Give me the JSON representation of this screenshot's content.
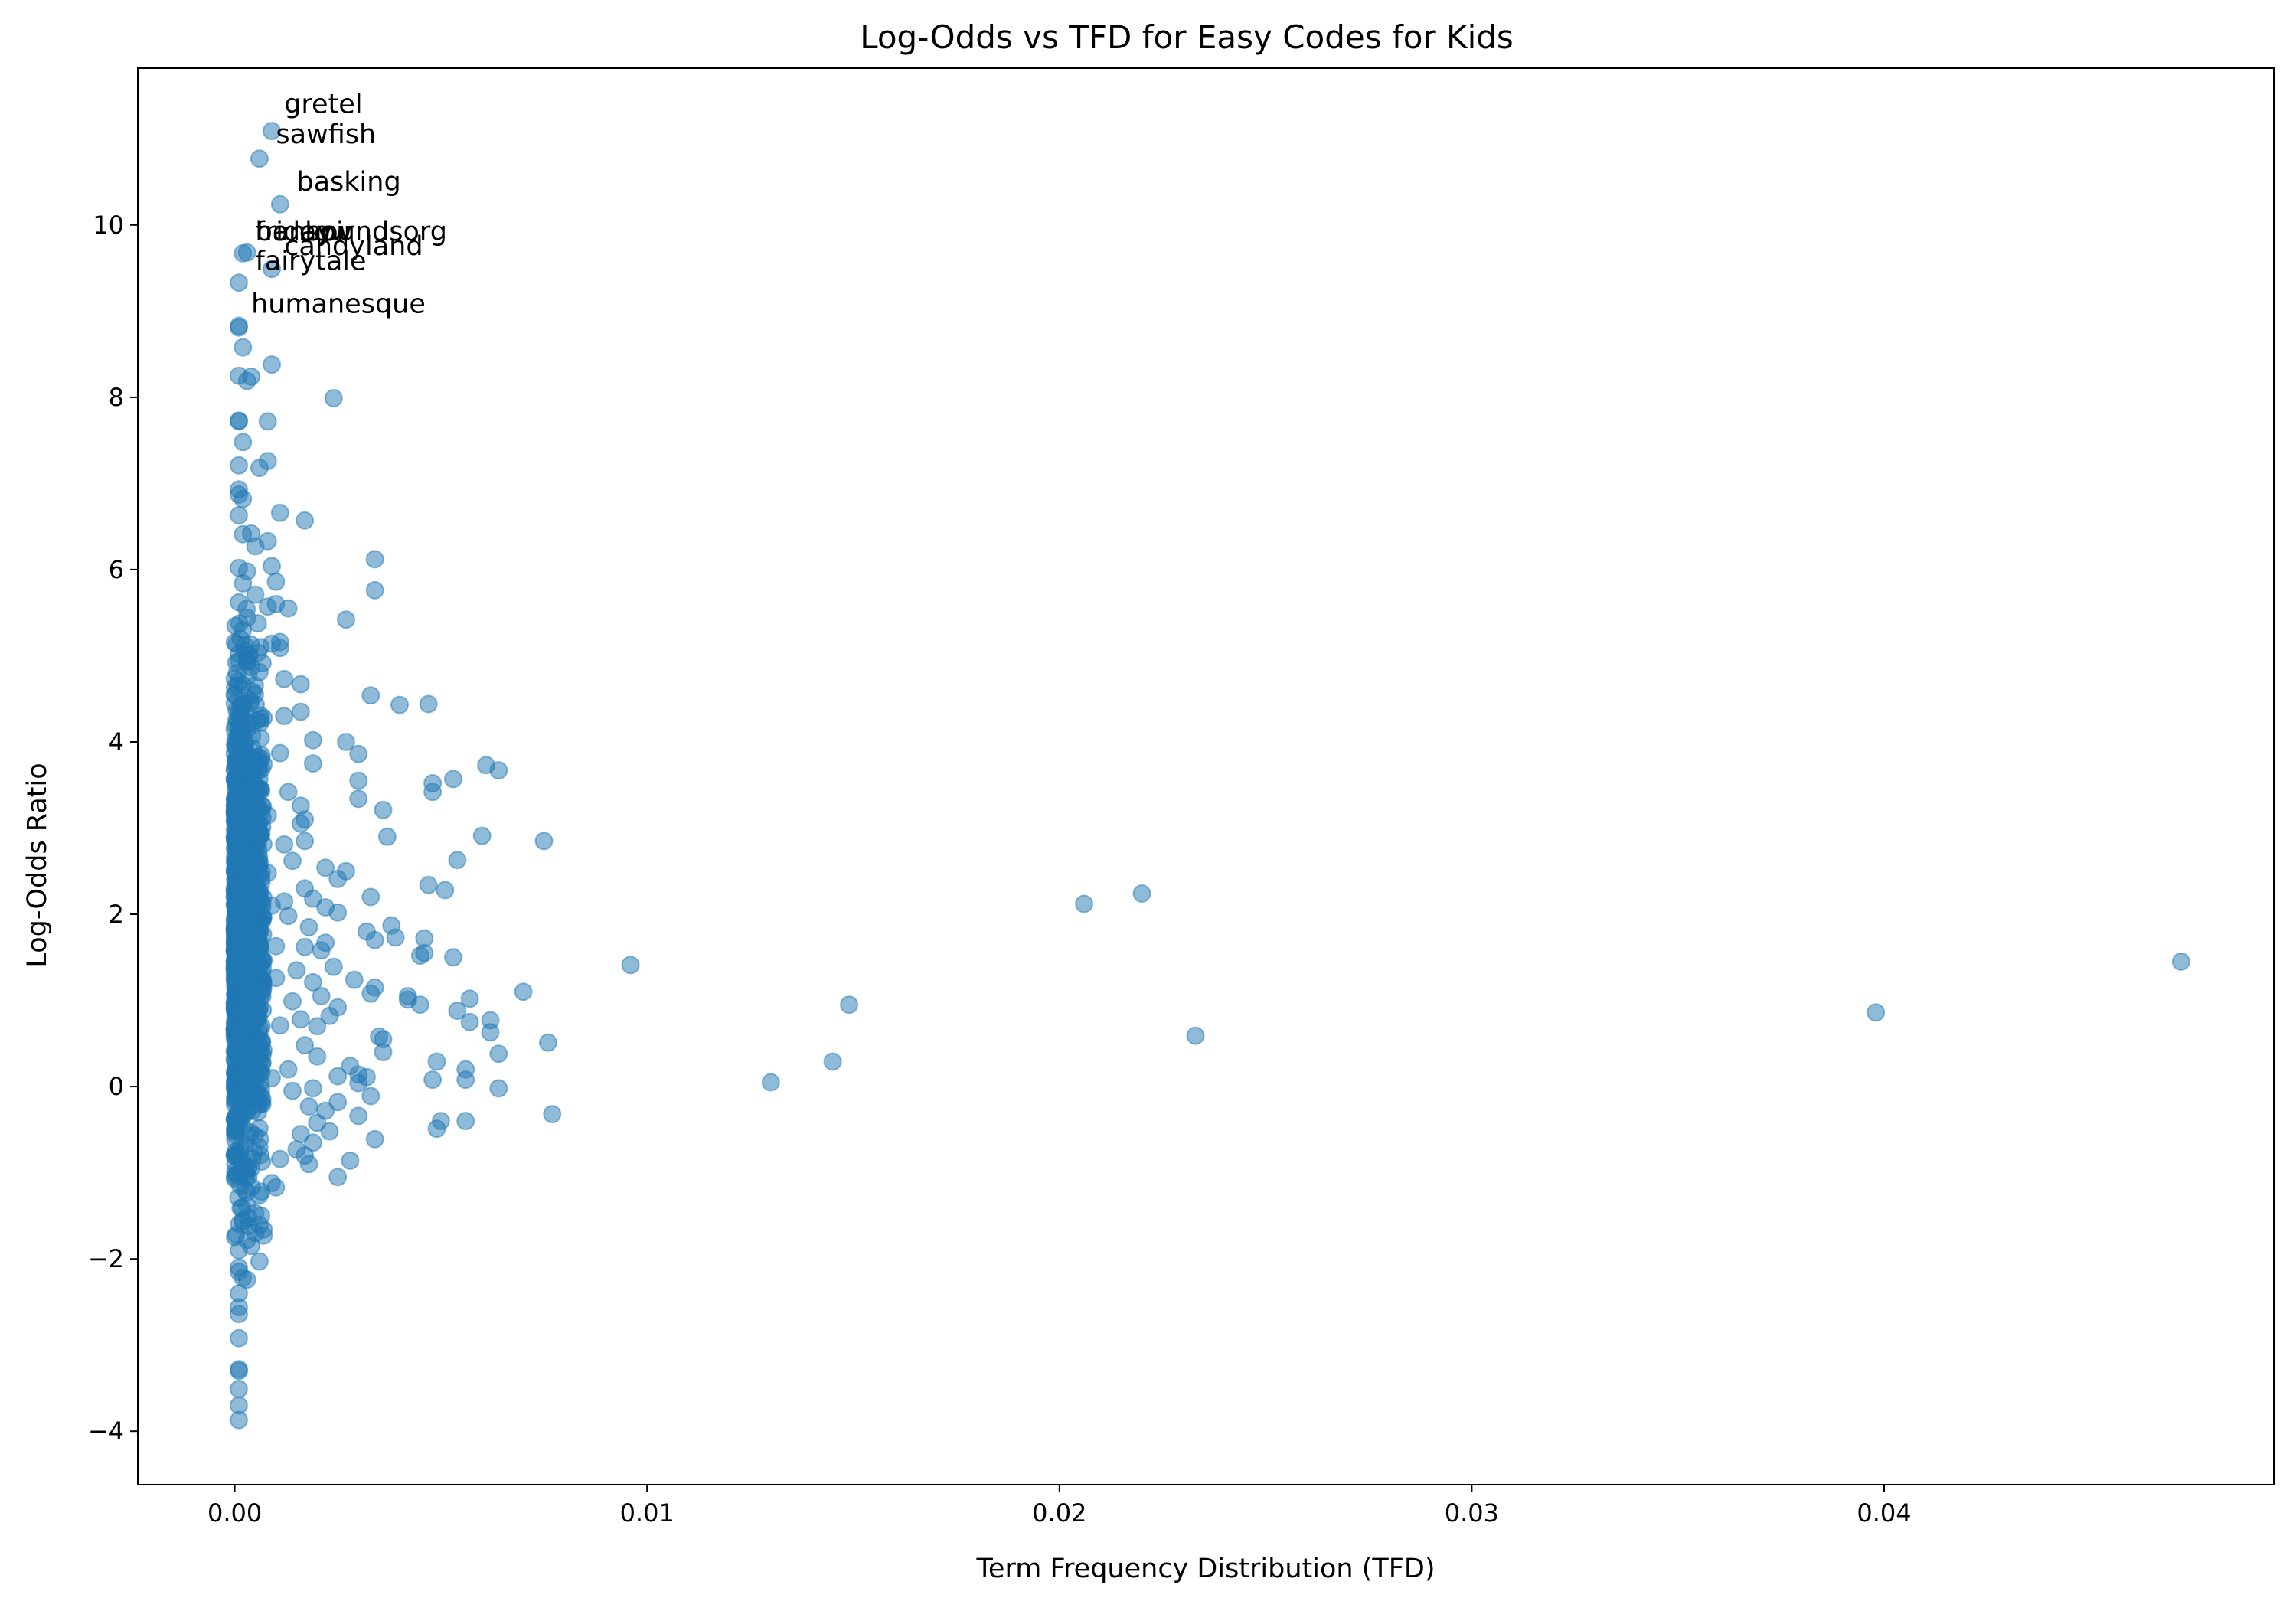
{
  "chart_data": {
    "type": "scatter",
    "title": "Log-Odds vs TFD for Easy Codes for Kids",
    "xlabel": "Term Frequency Distribution (TFD)",
    "ylabel": "Log-Odds Ratio",
    "xlim": [
      -0.00235,
      0.04945
    ],
    "ylim": [
      -4.62,
      11.82
    ],
    "x_ticks": [
      0.0,
      0.01,
      0.02,
      0.03,
      0.04
    ],
    "x_tick_labels": [
      "0.00",
      "0.01",
      "0.02",
      "0.03",
      "0.04"
    ],
    "y_ticks": [
      -4,
      -2,
      0,
      2,
      4,
      6,
      8,
      10
    ],
    "y_tick_labels": [
      "−4",
      "−2",
      "0",
      "2",
      "4",
      "6",
      "8",
      "10"
    ],
    "grid": false,
    "legend": "none",
    "point_color": "#1f77b4",
    "point_alpha": 0.5,
    "points": [
      [
        0.0009,
        11.09
      ],
      [
        0.0006,
        10.77
      ],
      [
        0.0011,
        10.24
      ],
      [
        0.0002,
        9.67
      ],
      [
        0.0003,
        9.68
      ],
      [
        0.0009,
        9.49
      ],
      [
        0.0001,
        9.33
      ],
      [
        0.0001,
        8.81
      ],
      [
        0.0001,
        8.83
      ],
      [
        0.0002,
        8.58
      ],
      [
        0.0009,
        8.38
      ],
      [
        0.0001,
        8.25
      ],
      [
        0.0004,
        8.24
      ],
      [
        0.0003,
        8.19
      ],
      [
        0.0024,
        7.99
      ],
      [
        0.0001,
        7.73
      ],
      [
        0.0001,
        7.72
      ],
      [
        0.0008,
        7.72
      ],
      [
        0.0002,
        7.48
      ],
      [
        0.0008,
        7.26
      ],
      [
        0.0006,
        7.18
      ],
      [
        0.0001,
        7.21
      ],
      [
        0.0001,
        6.93
      ],
      [
        0.0001,
        6.87
      ],
      [
        0.0002,
        6.82
      ],
      [
        0.0011,
        6.66
      ],
      [
        0.0001,
        6.63
      ],
      [
        0.0017,
        6.57
      ],
      [
        0.0002,
        6.41
      ],
      [
        0.0004,
        6.42
      ],
      [
        0.0008,
        6.33
      ],
      [
        0.0005,
        6.27
      ],
      [
        0.0034,
        6.12
      ],
      [
        0.0001,
        6.02
      ],
      [
        0.0009,
        6.04
      ],
      [
        0.0003,
        5.98
      ],
      [
        0.0002,
        5.84
      ],
      [
        0.001,
        5.86
      ],
      [
        0.0034,
        5.76
      ],
      [
        0.0005,
        5.71
      ],
      [
        0.0001,
        5.62
      ],
      [
        0.001,
        5.6
      ],
      [
        0.0013,
        5.55
      ],
      [
        0.0008,
        5.57
      ],
      [
        0.0003,
        5.44
      ],
      [
        0.0027,
        5.42
      ],
      [
        0.0002,
        5.3
      ],
      [
        0.0011,
        5.16
      ],
      [
        0.0009,
        5.14
      ],
      [
        0.0011,
        5.09
      ],
      [
        0.0001,
        5.02
      ],
      [
        0.0003,
        4.93
      ],
      [
        0.0004,
        4.87
      ],
      [
        0.0006,
        4.81
      ],
      [
        0.0012,
        4.73
      ],
      [
        0.0016,
        4.67
      ],
      [
        0.0033,
        4.54
      ],
      [
        0.004,
        4.43
      ],
      [
        0.0047,
        4.44
      ],
      [
        0.0016,
        4.35
      ],
      [
        0.0012,
        4.3
      ],
      [
        0.0007,
        4.28
      ],
      [
        0.0003,
        4.2
      ],
      [
        0.0002,
        4.07
      ],
      [
        0.0019,
        4.02
      ],
      [
        0.0027,
        4.0
      ],
      [
        0.0011,
        3.87
      ],
      [
        0.003,
        3.86
      ],
      [
        0.0005,
        3.78
      ],
      [
        0.0007,
        3.74
      ],
      [
        0.0019,
        3.75
      ],
      [
        0.0061,
        3.73
      ],
      [
        0.0064,
        3.67
      ],
      [
        0.0048,
        3.52
      ],
      [
        0.0053,
        3.57
      ],
      [
        0.003,
        3.55
      ],
      [
        0.0048,
        3.42
      ],
      [
        0.0013,
        3.42
      ],
      [
        0.003,
        3.34
      ],
      [
        0.0016,
        3.26
      ],
      [
        0.0036,
        3.21
      ],
      [
        0.0008,
        3.15
      ],
      [
        0.0004,
        3.14
      ],
      [
        0.0017,
        3.1
      ],
      [
        0.0016,
        3.05
      ],
      [
        0.006,
        2.91
      ],
      [
        0.0037,
        2.9
      ],
      [
        0.0017,
        2.85
      ],
      [
        0.0075,
        2.85
      ],
      [
        0.0012,
        2.81
      ],
      [
        0.0054,
        2.63
      ],
      [
        0.0014,
        2.62
      ],
      [
        0.0005,
        2.55
      ],
      [
        0.0022,
        2.54
      ],
      [
        0.0027,
        2.5
      ],
      [
        0.0008,
        2.48
      ],
      [
        0.0025,
        2.41
      ],
      [
        0.0047,
        2.34
      ],
      [
        0.0017,
        2.3
      ],
      [
        0.0051,
        2.28
      ],
      [
        0.0006,
        2.24
      ],
      [
        0.022,
        2.24
      ],
      [
        0.0033,
        2.2
      ],
      [
        0.0019,
        2.18
      ],
      [
        0.0012,
        2.15
      ],
      [
        0.0206,
        2.12
      ],
      [
        0.0009,
        2.1
      ],
      [
        0.0022,
        2.08
      ],
      [
        0.0025,
        2.02
      ],
      [
        0.0013,
        1.98
      ],
      [
        0.0038,
        1.87
      ],
      [
        0.0032,
        1.8
      ],
      [
        0.0018,
        1.85
      ],
      [
        0.0006,
        1.82
      ],
      [
        0.0039,
        1.73
      ],
      [
        0.0046,
        1.72
      ],
      [
        0.0034,
        1.7
      ],
      [
        0.0022,
        1.67
      ],
      [
        0.001,
        1.63
      ],
      [
        0.0017,
        1.62
      ],
      [
        0.0021,
        1.58
      ],
      [
        0.0046,
        1.55
      ],
      [
        0.0045,
        1.52
      ],
      [
        0.0053,
        1.5
      ],
      [
        0.0007,
        1.47
      ],
      [
        0.0096,
        1.41
      ],
      [
        0.0472,
        1.45
      ],
      [
        0.0024,
        1.39
      ],
      [
        0.0015,
        1.35
      ],
      [
        0.0029,
        1.24
      ],
      [
        0.001,
        1.26
      ],
      [
        0.0019,
        1.21
      ],
      [
        0.0034,
        1.15
      ],
      [
        0.007,
        1.1
      ],
      [
        0.0033,
        1.08
      ],
      [
        0.0021,
        1.05
      ],
      [
        0.0042,
        1.05
      ],
      [
        0.0057,
        1.02
      ],
      [
        0.0042,
        1.01
      ],
      [
        0.0014,
        0.99
      ],
      [
        0.0149,
        0.95
      ],
      [
        0.0045,
        0.95
      ],
      [
        0.0025,
        0.92
      ],
      [
        0.0054,
        0.88
      ],
      [
        0.0398,
        0.86
      ],
      [
        0.0023,
        0.82
      ],
      [
        0.0016,
        0.78
      ],
      [
        0.0062,
        0.77
      ],
      [
        0.0057,
        0.75
      ],
      [
        0.0011,
        0.71
      ],
      [
        0.002,
        0.7
      ],
      [
        0.0062,
        0.63
      ],
      [
        0.0233,
        0.59
      ],
      [
        0.0035,
        0.58
      ],
      [
        0.0036,
        0.55
      ],
      [
        0.0076,
        0.51
      ],
      [
        0.0017,
        0.48
      ],
      [
        0.0036,
        0.4
      ],
      [
        0.0064,
        0.38
      ],
      [
        0.0006,
        0.37
      ],
      [
        0.002,
        0.35
      ],
      [
        0.0145,
        0.29
      ],
      [
        0.0049,
        0.29
      ],
      [
        0.0028,
        0.24
      ],
      [
        0.0056,
        0.2
      ],
      [
        0.0013,
        0.2
      ],
      [
        0.003,
        0.14
      ],
      [
        0.0025,
        0.12
      ],
      [
        0.0032,
        0.11
      ],
      [
        0.0009,
        0.1
      ],
      [
        0.0056,
        0.08
      ],
      [
        0.0048,
        0.08
      ],
      [
        0.013,
        0.05
      ],
      [
        0.003,
        0.04
      ],
      [
        0.0019,
        -0.02
      ],
      [
        0.0064,
        -0.02
      ],
      [
        0.0014,
        -0.05
      ],
      [
        0.0033,
        -0.11
      ],
      [
        0.0025,
        -0.18
      ],
      [
        0.0018,
        -0.23
      ],
      [
        0.0022,
        -0.28
      ],
      [
        0.0077,
        -0.32
      ],
      [
        0.003,
        -0.34
      ],
      [
        0.005,
        -0.4
      ],
      [
        0.0056,
        -0.4
      ],
      [
        0.002,
        -0.42
      ],
      [
        0.0049,
        -0.49
      ],
      [
        0.0023,
        -0.52
      ],
      [
        0.0016,
        -0.55
      ],
      [
        0.0034,
        -0.61
      ],
      [
        0.0019,
        -0.65
      ],
      [
        0.0015,
        -0.73
      ],
      [
        0.0017,
        -0.8
      ],
      [
        0.0011,
        -0.84
      ],
      [
        0.0028,
        -0.86
      ],
      [
        0.0018,
        -0.9
      ],
      [
        0.0004,
        -0.95
      ],
      [
        0.0025,
        -1.05
      ],
      [
        0.0009,
        -1.12
      ],
      [
        0.001,
        -1.17
      ],
      [
        0.0006,
        -1.26
      ],
      [
        0.0003,
        -1.38
      ],
      [
        0.0005,
        -1.47
      ],
      [
        0.0002,
        -1.55
      ],
      [
        0.0007,
        -1.66
      ],
      [
        0.0005,
        -1.7
      ],
      [
        0.0007,
        -1.73
      ],
      [
        0.0003,
        -1.78
      ],
      [
        0.0004,
        -1.85
      ],
      [
        0.0001,
        -1.9
      ],
      [
        0.0006,
        -2.03
      ],
      [
        0.0001,
        -2.1
      ],
      [
        0.0001,
        -2.15
      ],
      [
        0.0002,
        -2.22
      ],
      [
        0.0003,
        -2.24
      ],
      [
        0.0001,
        -2.4
      ],
      [
        0.0001,
        -2.56
      ],
      [
        0.0001,
        -2.64
      ],
      [
        0.0001,
        -2.92
      ],
      [
        0.0001,
        -3.28
      ],
      [
        0.0001,
        -3.3
      ],
      [
        0.0001,
        -3.51
      ],
      [
        0.0001,
        -3.7
      ],
      [
        0.0001,
        -3.87
      ]
    ],
    "dense_band": {
      "x_range": [
        0.0,
        0.0007
      ],
      "y_range": [
        -2.3,
        5.9
      ],
      "count": 1100,
      "seed": 7
    },
    "annotations": [
      {
        "text": "gretel",
        "x": 0.0012,
        "y": 11.3
      },
      {
        "text": "sawfish",
        "x": 0.001,
        "y": 10.95
      },
      {
        "text": "basking",
        "x": 0.0015,
        "y": 10.4
      },
      {
        "text": "bonsoir",
        "x": 0.0005,
        "y": 9.82
      },
      {
        "text": "friday",
        "x": 0.0005,
        "y": 9.82
      },
      {
        "text": "harcow",
        "x": 0.0005,
        "y": 9.82
      },
      {
        "text": "houndsorg",
        "x": 0.0017,
        "y": 9.82
      },
      {
        "text": "candyland",
        "x": 0.0012,
        "y": 9.65
      },
      {
        "text": "fairytale",
        "x": 0.0005,
        "y": 9.48
      },
      {
        "text": "humanesque",
        "x": 0.0004,
        "y": 8.98
      }
    ]
  }
}
